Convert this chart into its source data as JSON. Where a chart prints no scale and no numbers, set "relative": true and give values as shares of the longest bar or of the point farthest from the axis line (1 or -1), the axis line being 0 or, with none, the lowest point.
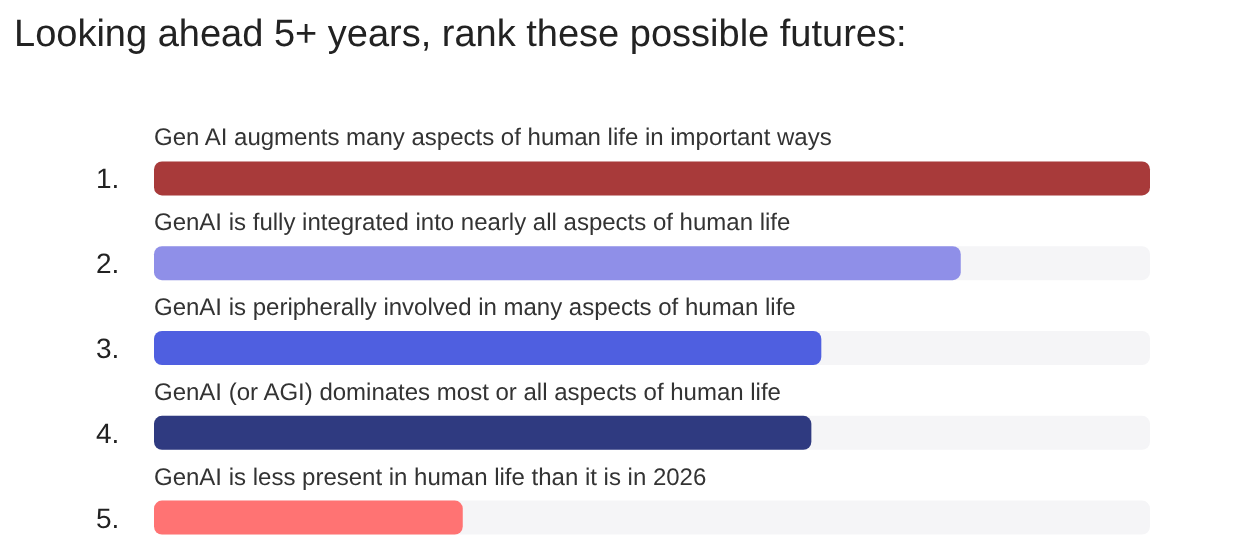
{
  "chart_data": {
    "type": "bar",
    "orientation": "horizontal",
    "relative": true,
    "title": "Looking ahead 5+ years, rank these possible futures:",
    "categories": [
      "Gen AI augments many aspects of human life in important ways",
      "GenAI is fully integrated into nearly all aspects of human life",
      "GenAI is peripherally involved in many aspects of human life",
      "GenAI (or AGI) dominates most or all aspects of human life",
      "GenAI is less present in human life than it is in 2026"
    ],
    "values": [
      1,
      0.81,
      0.67,
      0.66,
      0.31
    ],
    "colors": [
      "#a83a3a",
      "#8f8fe8",
      "#4f5fe0",
      "#2f3a80",
      "#ff7373"
    ],
    "annotations": [
      "1.",
      "2.",
      "3.",
      "4.",
      "5."
    ]
  }
}
